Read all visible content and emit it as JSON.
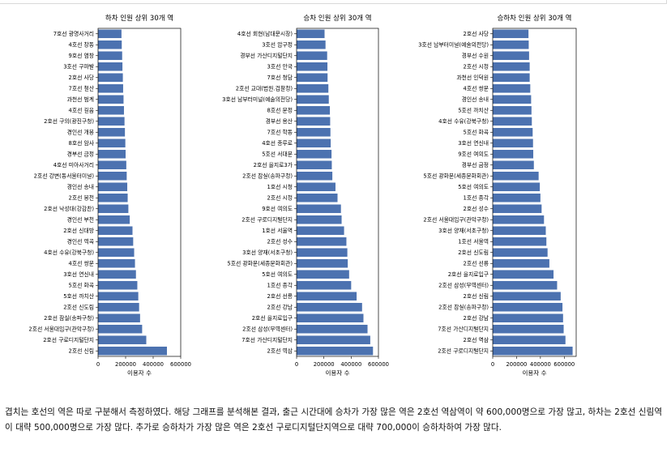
{
  "chart_data": [
    {
      "type": "bar",
      "orientation": "horizontal",
      "title": "하차 인원 상위 30개 역",
      "xlabel": "이용자 수",
      "xlim": [
        0,
        600000
      ],
      "xticks": [
        "0",
        "200000",
        "400000",
        "600000"
      ],
      "color": "#4c72b0",
      "categories": [
        "2호선 신림",
        "2호선 구로디지털단지",
        "2호선 서울대입구(관악구청)",
        "2호선 잠실(송파구청)",
        "2호선 신도림",
        "5호선 까치산",
        "5호선 화곡",
        "3호선 연신내",
        "4호선 쌍문",
        "4호선 수유(강북구청)",
        "경인선 역곡",
        "2호선 신대방",
        "경인선 부천",
        "2호선 낙성대(강감찬)",
        "2호선 봉천",
        "경인선 송내",
        "2호선 강변(동서울터미널)",
        "4호선 미아사거리",
        "경부선 금정",
        "8호선 암사",
        "경인선 개봉",
        "2호선 구의(광진구청)",
        "4호선 길음",
        "과천선 범계",
        "7호선 철산",
        "2호선 사당",
        "3호선 구파발",
        "9호선 염창",
        "4호선 창동",
        "7호선 광명사거리"
      ],
      "values": [
        500000,
        350000,
        320000,
        305000,
        298000,
        292000,
        285000,
        275000,
        268000,
        262000,
        255000,
        250000,
        230000,
        220000,
        215000,
        212000,
        208000,
        205000,
        200000,
        198000,
        195000,
        192000,
        188000,
        185000,
        182000,
        180000,
        177000,
        175000,
        172000,
        170000
      ]
    },
    {
      "type": "bar",
      "orientation": "horizontal",
      "title": "승차 인원 상위 30개 역",
      "xlabel": "이용자 수",
      "xlim": [
        0,
        600000
      ],
      "xticks": [
        "0",
        "200000",
        "400000",
        "600000"
      ],
      "color": "#4c72b0",
      "categories": [
        "2호선 역삼",
        "7호선 가산디지털단지",
        "2호선 삼성(무역센터)",
        "2호선 을지로입구",
        "2호선 강남",
        "2호선 선릉",
        "1호선 종각",
        "5호선 여의도",
        "5호선 광화문(세종문화회관)",
        "3호선 양재(서초구청)",
        "2호선 성수",
        "1호선 서울역",
        "2호선 구로디지털단지",
        "9호선 여의도",
        "2호선 시청",
        "1호선 시청",
        "2호선 잠실(송파구청)",
        "2호선 을지로3가",
        "5호선 서대문",
        "4호선 종루로",
        "7호선 학동",
        "경부선 용산",
        "8호선 문정",
        "3호선 남부터미널(예술의전당)",
        "2호선 교대(법원.검찰청)",
        "7호선 청담",
        "3호선 안국",
        "경부선 가산디지털단지",
        "3호선 압구정",
        "4호선 회현(남대문시장)"
      ],
      "values": [
        560000,
        540000,
        520000,
        490000,
        480000,
        440000,
        400000,
        385000,
        375000,
        372000,
        365000,
        348000,
        330000,
        325000,
        300000,
        285000,
        262000,
        258000,
        256000,
        250000,
        248000,
        246000,
        244000,
        236000,
        233000,
        227000,
        226000,
        224000,
        212000,
        205000
      ]
    },
    {
      "type": "bar",
      "orientation": "horizontal",
      "title": "승하차 인원 상위 30개 역",
      "xlabel": "이용자 수",
      "xlim": [
        0,
        700000
      ],
      "xticks": [
        "0",
        "200000",
        "400000",
        "600000"
      ],
      "color": "#4c72b0",
      "categories": [
        "2호선 구로디지털단지",
        "2호선 역삼",
        "7호선 가산디지털단지",
        "2호선 강남",
        "2호선 잠실(송파구청)",
        "2호선 신림",
        "2호선 삼성(무역센터)",
        "2호선 을지로입구",
        "2호선 선릉",
        "2호선 신도림",
        "1호선 서울역",
        "3호선 양재(서초구청)",
        "2호선 서울대입구(관악구청)",
        "2호선 성수",
        "1호선 종각",
        "5호선 여의도",
        "5호선 광화문(세종문화회관)",
        "경부선 금정",
        "9호선 여의도",
        "3호선 연신내",
        "5호선 화곡",
        "4호선 수유(강북구청)",
        "5호선 까치산",
        "경인선 송내",
        "4호선 쌍문",
        "과천선 인덕원",
        "2호선 시청",
        "경부선 수원",
        "3호선 남부터미널(예술의전당)",
        "2호선 사당"
      ],
      "values": [
        670000,
        610000,
        595000,
        590000,
        585000,
        570000,
        540000,
        510000,
        475000,
        460000,
        450000,
        445000,
        430000,
        410000,
        400000,
        395000,
        385000,
        345000,
        340000,
        338000,
        335000,
        328000,
        325000,
        322000,
        315000,
        310000,
        310000,
        305000,
        302000,
        300000
      ]
    }
  ],
  "caption": "겹치는 호선의 역은 따로 구분해서 측정하였다. 해당 그래프를 분석해본 결과, 출근 시간대에 승차가 가장 많은 역은 2호선 역삼역이 약 600,000명으로 가장 많고, 하차는 2호선 신림역이 대략 500,000명으로 가장 많다. 추가로 승하차가 가장 많은 역은 2호선 구로디지털단지역으로 대략 700,000이 승하차하여 가장 많다."
}
